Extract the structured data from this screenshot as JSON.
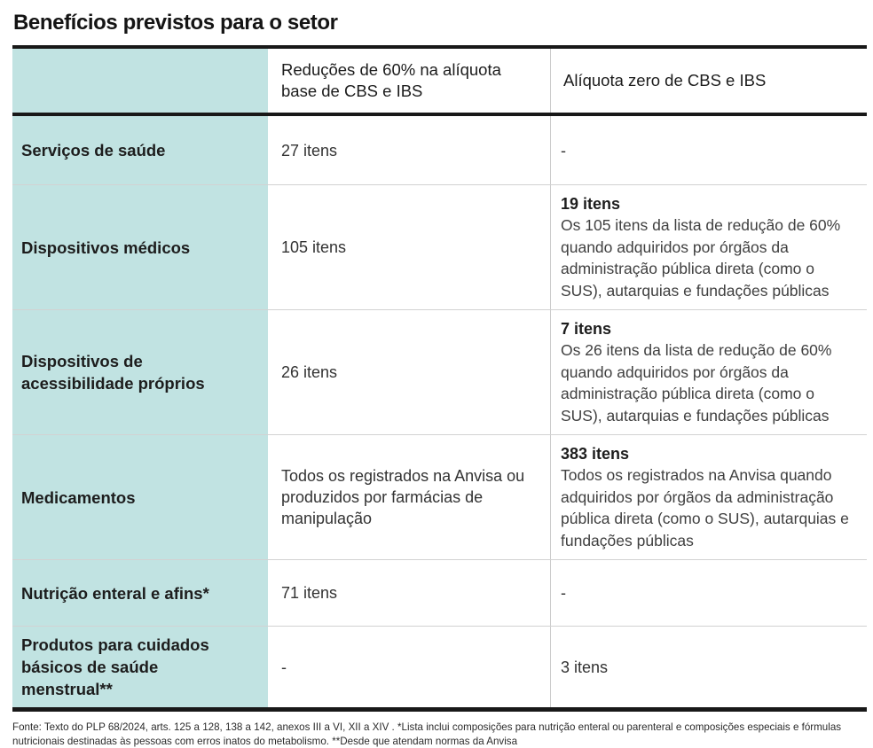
{
  "title": "Benefícios previstos para o setor",
  "colors": {
    "header_fill": "#c1e3e2",
    "rule_dark": "#181818",
    "rule_light": "#d2d2d2",
    "text_dark": "#1d1d1d",
    "text_body": "#404040"
  },
  "chart_data": {
    "type": "table",
    "title": "Benefícios previstos para o setor",
    "columns": [
      "",
      "Reduções de 60% na alíquota base de CBS e IBS",
      "Alíquota zero de CBS e IBS"
    ],
    "rows": [
      {
        "label": "Serviços de saúde",
        "reduction": "27 itens",
        "zero": "-",
        "zero_detail": ""
      },
      {
        "label": "Dispositivos médicos",
        "reduction": "105 itens",
        "zero": "19 itens",
        "zero_detail": "Os 105 itens da lista de redução de 60% quando adquiridos por órgãos da administração pública direta (como o SUS), autarquias e fundações públicas"
      },
      {
        "label": "Dispositivos de acessibilidade próprios",
        "reduction": "26 itens",
        "zero": "7 itens",
        "zero_detail": "Os 26 itens da lista de redução de 60% quando adquiridos por órgãos da administração pública direta (como o SUS), autarquias e fundações públicas"
      },
      {
        "label": "Medicamentos",
        "reduction": "Todos os registrados na Anvisa ou produzidos por farmácias de manipulação",
        "zero": "383 itens",
        "zero_detail": "Todos os registrados na Anvisa quando adquiridos por órgãos da administração pública direta (como o SUS), autarquias e fundações públicas"
      },
      {
        "label": "Nutrição enteral e afins*",
        "reduction": "71 itens",
        "zero": "-",
        "zero_detail": ""
      },
      {
        "label": "Produtos para cuidados básicos de saúde menstrual**",
        "reduction": "-",
        "zero": "3 itens",
        "zero_detail": ""
      }
    ],
    "source_note": "Fonte: Texto do PLP 68/2024, arts. 125 a 128, 138 a 142, anexos III a VI, XII a XIV . *Lista inclui composições para nutrição enteral ou parenteral e composições especiais e fórmulas nutricionais destinadas às pessoas com erros inatos do metabolismo.  **Desde que atendam normas da Anvisa"
  }
}
